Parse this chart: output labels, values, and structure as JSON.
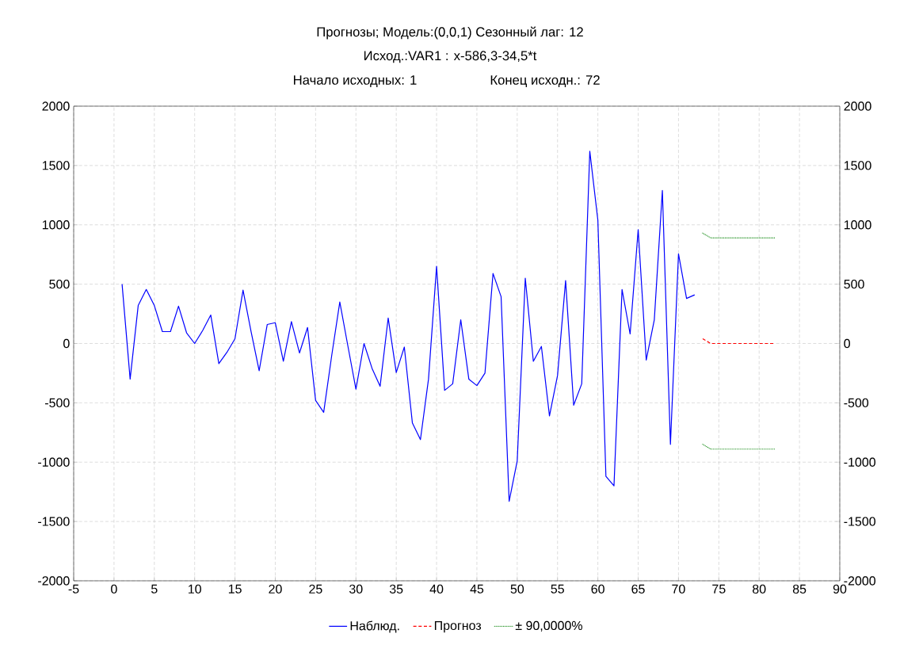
{
  "chart_data": {
    "type": "line",
    "title": "Прогнозы; Модель:(0,0,1) Сезонный лаг: 12",
    "subtitle": "Исход.:VAR1    : x-586,3-34,5*t",
    "annotations": [
      "Начало исходных: 1",
      "Конец исходн.: 72"
    ],
    "xlim": [
      -5,
      90
    ],
    "xticks": [
      -5,
      0,
      5,
      10,
      15,
      20,
      25,
      30,
      35,
      40,
      45,
      50,
      55,
      60,
      65,
      70,
      75,
      80,
      85,
      90
    ],
    "ylim": [
      -2000,
      2000
    ],
    "yticks": [
      -2000,
      -1500,
      -1000,
      -500,
      0,
      500,
      1000,
      1500,
      2000
    ],
    "y2lim": [
      -2000,
      2000
    ],
    "y2ticks": [
      -2000,
      -1500,
      -1000,
      -500,
      0,
      500,
      1000,
      1500,
      2000
    ],
    "grid": true,
    "legend": "bottom",
    "series": [
      {
        "name": "Наблюд.",
        "color": "#0000ff",
        "line_style": "solid",
        "x": [
          1,
          2,
          3,
          4,
          5,
          6,
          7,
          8,
          9,
          10,
          11,
          12,
          13,
          14,
          15,
          16,
          17,
          18,
          19,
          20,
          21,
          22,
          23,
          24,
          25,
          26,
          27,
          28,
          29,
          30,
          31,
          32,
          33,
          34,
          35,
          36,
          37,
          38,
          39,
          40,
          41,
          42,
          43,
          44,
          45,
          46,
          47,
          48,
          49,
          50,
          51,
          52,
          53,
          54,
          55,
          56,
          57,
          58,
          59,
          60,
          61,
          62,
          63,
          64,
          65,
          66,
          67,
          68,
          69,
          70,
          71,
          72
        ],
        "values": [
          500,
          -300,
          320,
          455,
          320,
          100,
          100,
          315,
          90,
          0,
          110,
          240,
          -170,
          -75,
          40,
          450,
          100,
          -230,
          160,
          175,
          -150,
          185,
          -80,
          135,
          -480,
          -580,
          -100,
          350,
          -20,
          -385,
          0,
          -210,
          -360,
          215,
          -245,
          -30,
          -670,
          -810,
          -300,
          650,
          -395,
          -340,
          200,
          -300,
          -355,
          -250,
          590,
          395,
          -1330,
          -990,
          550,
          -150,
          -25,
          -610,
          -270,
          530,
          -520,
          -340,
          1620,
          1040,
          -1120,
          -1200,
          455,
          80,
          960,
          -140,
          200,
          1290,
          -850,
          755,
          380,
          410
        ]
      },
      {
        "name": "Прогноз",
        "color": "#ff0000",
        "line_style": "dashed",
        "x": [
          73,
          74,
          75,
          76,
          77,
          78,
          79,
          80,
          81,
          82
        ],
        "values": [
          40,
          0,
          0,
          0,
          0,
          0,
          0,
          0,
          0,
          0
        ]
      },
      {
        "name": "± 90,0000%",
        "color": "#008000",
        "line_style": "dotted",
        "x": [
          73,
          74,
          75,
          76,
          77,
          78,
          79,
          80,
          81,
          82
        ],
        "values": [
          930,
          890,
          890,
          890,
          890,
          890,
          890,
          890,
          890,
          890
        ]
      },
      {
        "color": "#008000",
        "line_style": "dotted",
        "x": [
          73,
          74,
          75,
          76,
          77,
          78,
          79,
          80,
          81,
          82
        ],
        "values": [
          -850,
          -890,
          -890,
          -890,
          -890,
          -890,
          -890,
          -890,
          -890,
          -890
        ]
      }
    ]
  }
}
